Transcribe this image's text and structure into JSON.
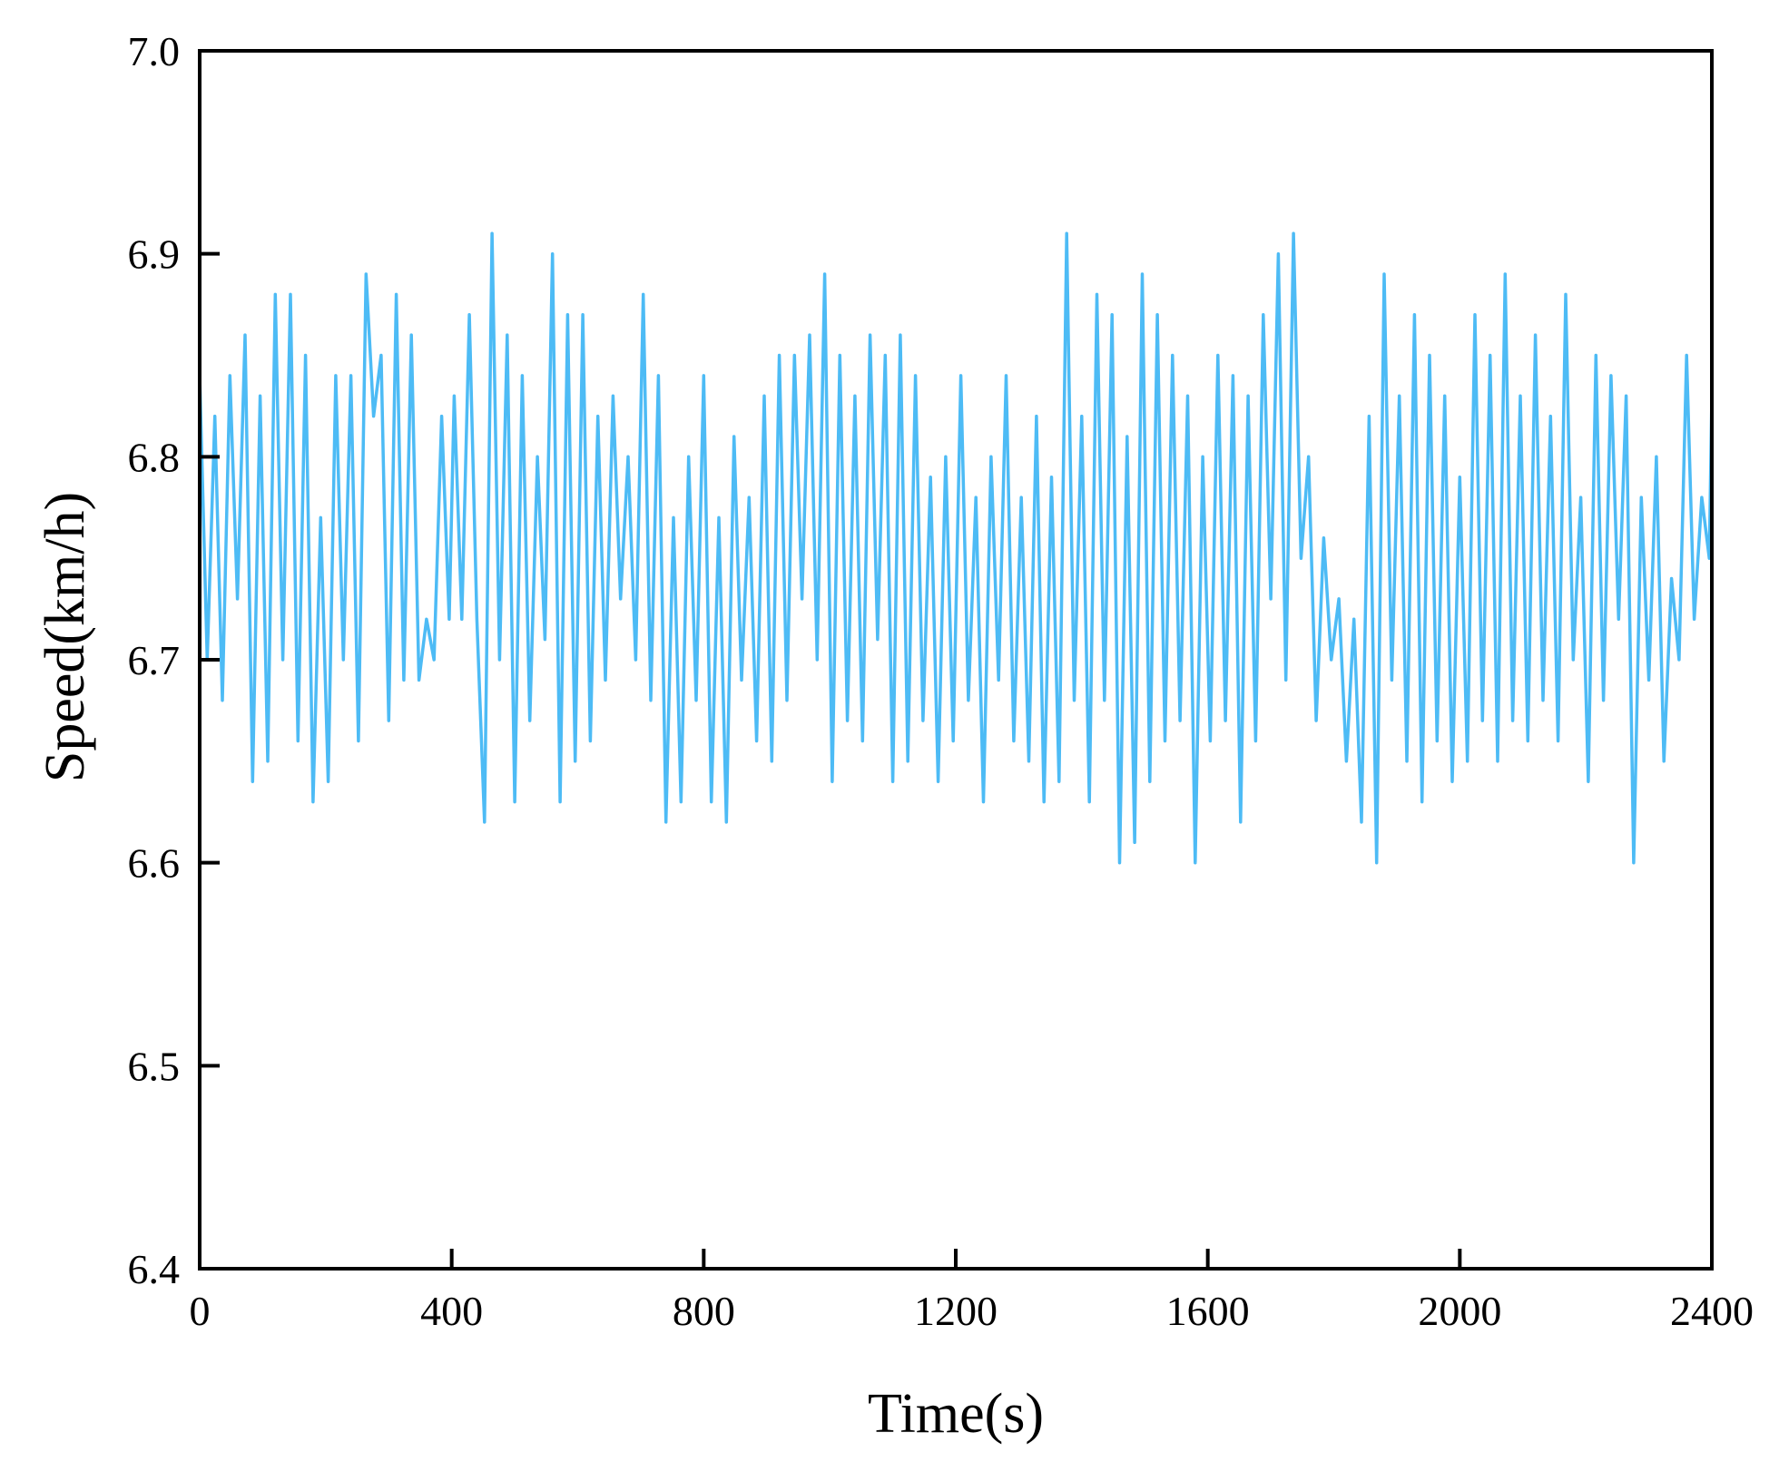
{
  "chart_data": {
    "type": "line",
    "title": "",
    "xlabel": "Time(s)",
    "ylabel": "Speed(km/h)",
    "xlim": [
      0,
      2400
    ],
    "ylim": [
      6.4,
      7.0
    ],
    "xticks": [
      "0",
      "400",
      "800",
      "1200",
      "1600",
      "2000",
      "2400"
    ],
    "yticks": [
      "6.4",
      "6.5",
      "6.6",
      "6.7",
      "6.8",
      "6.9",
      "7.0"
    ],
    "grid": false,
    "legend": "none",
    "series": [
      {
        "color": "#4dbbf5",
        "x": [
          0,
          12,
          24,
          36,
          48,
          60,
          72,
          84,
          96,
          108,
          120,
          132,
          144,
          156,
          168,
          180,
          192,
          204,
          216,
          228,
          240,
          252,
          264,
          276,
          288,
          300,
          312,
          324,
          336,
          348,
          360,
          372,
          384,
          396,
          404,
          416,
          428,
          440,
          452,
          464,
          476,
          488,
          500,
          512,
          524,
          536,
          548,
          560,
          572,
          584,
          596,
          608,
          620,
          632,
          644,
          656,
          668,
          680,
          692,
          704,
          716,
          728,
          740,
          752,
          764,
          776,
          788,
          800,
          812,
          824,
          836,
          848,
          860,
          872,
          884,
          896,
          908,
          920,
          932,
          944,
          956,
          968,
          980,
          992,
          1004,
          1016,
          1028,
          1040,
          1052,
          1064,
          1076,
          1088,
          1100,
          1112,
          1124,
          1136,
          1148,
          1160,
          1172,
          1184,
          1196,
          1208,
          1220,
          1232,
          1244,
          1256,
          1268,
          1280,
          1292,
          1304,
          1316,
          1328,
          1340,
          1352,
          1364,
          1376,
          1388,
          1400,
          1412,
          1424,
          1436,
          1448,
          1460,
          1472,
          1484,
          1496,
          1508,
          1520,
          1532,
          1544,
          1556,
          1568,
          1580,
          1592,
          1604,
          1616,
          1628,
          1640,
          1652,
          1664,
          1676,
          1688,
          1700,
          1712,
          1724,
          1736,
          1748,
          1760,
          1772,
          1784,
          1796,
          1808,
          1820,
          1832,
          1844,
          1856,
          1868,
          1880,
          1892,
          1904,
          1916,
          1928,
          1940,
          1952,
          1964,
          1976,
          1988,
          2000,
          2012,
          2024,
          2036,
          2048,
          2060,
          2072,
          2084,
          2096,
          2108,
          2120,
          2132,
          2144,
          2156,
          2168,
          2180,
          2192,
          2204,
          2216,
          2228,
          2240,
          2252,
          2264,
          2276,
          2288,
          2300,
          2312,
          2324,
          2336,
          2348,
          2360,
          2372,
          2384,
          2396,
          2400
        ],
        "values": [
          6.84,
          6.7,
          6.82,
          6.68,
          6.84,
          6.73,
          6.86,
          6.64,
          6.83,
          6.65,
          6.88,
          6.7,
          6.88,
          6.66,
          6.85,
          6.63,
          6.77,
          6.64,
          6.84,
          6.7,
          6.84,
          6.66,
          6.89,
          6.82,
          6.85,
          6.67,
          6.88,
          6.69,
          6.86,
          6.69,
          6.72,
          6.7,
          6.82,
          6.72,
          6.83,
          6.72,
          6.87,
          6.72,
          6.62,
          6.91,
          6.7,
          6.86,
          6.63,
          6.84,
          6.67,
          6.8,
          6.71,
          6.9,
          6.63,
          6.87,
          6.65,
          6.87,
          6.66,
          6.82,
          6.69,
          6.83,
          6.73,
          6.8,
          6.7,
          6.88,
          6.68,
          6.84,
          6.62,
          6.77,
          6.63,
          6.8,
          6.68,
          6.84,
          6.63,
          6.77,
          6.62,
          6.81,
          6.69,
          6.78,
          6.66,
          6.83,
          6.65,
          6.85,
          6.68,
          6.85,
          6.73,
          6.86,
          6.7,
          6.89,
          6.64,
          6.85,
          6.67,
          6.83,
          6.66,
          6.86,
          6.71,
          6.85,
          6.64,
          6.86,
          6.65,
          6.84,
          6.67,
          6.79,
          6.64,
          6.8,
          6.66,
          6.84,
          6.68,
          6.78,
          6.63,
          6.8,
          6.69,
          6.84,
          6.66,
          6.78,
          6.65,
          6.82,
          6.63,
          6.79,
          6.64,
          6.91,
          6.68,
          6.82,
          6.63,
          6.88,
          6.68,
          6.87,
          6.6,
          6.81,
          6.61,
          6.89,
          6.64,
          6.87,
          6.66,
          6.85,
          6.67,
          6.83,
          6.6,
          6.8,
          6.66,
          6.85,
          6.67,
          6.84,
          6.62,
          6.83,
          6.66,
          6.87,
          6.73,
          6.9,
          6.69,
          6.91,
          6.75,
          6.8,
          6.67,
          6.76,
          6.7,
          6.73,
          6.65,
          6.72,
          6.62,
          6.82,
          6.6,
          6.89,
          6.69,
          6.83,
          6.65,
          6.87,
          6.63,
          6.85,
          6.66,
          6.83,
          6.64,
          6.79,
          6.65,
          6.87,
          6.67,
          6.85,
          6.65,
          6.89,
          6.67,
          6.83,
          6.66,
          6.86,
          6.68,
          6.82,
          6.66,
          6.88,
          6.7,
          6.78,
          6.64,
          6.85,
          6.68,
          6.84,
          6.72,
          6.83,
          6.6,
          6.78,
          6.69,
          6.8,
          6.65,
          6.74,
          6.7,
          6.85,
          6.72,
          6.78,
          6.75,
          6.83
        ]
      }
    ]
  }
}
